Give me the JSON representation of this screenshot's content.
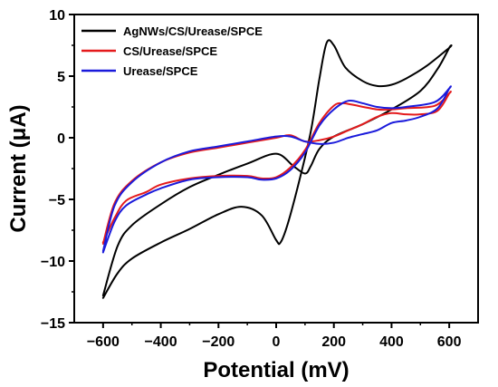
{
  "chart_data": {
    "type": "line",
    "title": "",
    "xlabel": "Potential (mV)",
    "ylabel": "Current (μA)",
    "xlim": [
      -700,
      700
    ],
    "ylim": [
      -15,
      10
    ],
    "x_ticks": [
      -600,
      -400,
      -200,
      0,
      200,
      400,
      600
    ],
    "x_tick_labels": [
      "−600",
      "−400",
      "−200",
      "0",
      "200",
      "400",
      "600"
    ],
    "y_ticks": [
      -15,
      -10,
      -5,
      0,
      5,
      10
    ],
    "y_tick_labels": [
      "−15",
      "−10",
      "−5",
      "0",
      "5",
      "10"
    ],
    "grid": false,
    "legend_position": "top-left",
    "series": [
      {
        "name": "AgNWs/CS/Urease/SPCE",
        "color": "#000000",
        "points": [
          [
            -600,
            -13
          ],
          [
            -550,
            -11
          ],
          [
            -500,
            -9.8
          ],
          [
            -400,
            -8.5
          ],
          [
            -300,
            -7.4
          ],
          [
            -200,
            -6.2
          ],
          [
            -120,
            -5.6
          ],
          [
            -50,
            -6.3
          ],
          [
            0,
            -8.3
          ],
          [
            15,
            -8.5
          ],
          [
            40,
            -7
          ],
          [
            80,
            -3.5
          ],
          [
            120,
            0.5
          ],
          [
            150,
            4.8
          ],
          [
            175,
            7.7
          ],
          [
            200,
            7.5
          ],
          [
            240,
            5.7
          ],
          [
            300,
            4.6
          ],
          [
            350,
            4.2
          ],
          [
            400,
            4.3
          ],
          [
            450,
            4.8
          ],
          [
            520,
            5.8
          ],
          [
            600,
            7.3
          ],
          [
            600,
            7.3
          ],
          [
            560,
            5.6
          ],
          [
            500,
            3.8
          ],
          [
            400,
            2.3
          ],
          [
            300,
            1.1
          ],
          [
            200,
            0.1
          ],
          [
            150,
            -0.9
          ],
          [
            120,
            -2.3
          ],
          [
            100,
            -2.9
          ],
          [
            60,
            -2.3
          ],
          [
            0,
            -1.3
          ],
          [
            -100,
            -2.1
          ],
          [
            -200,
            -3
          ],
          [
            -300,
            -4
          ],
          [
            -400,
            -5.4
          ],
          [
            -500,
            -7.1
          ],
          [
            -550,
            -8.8
          ],
          [
            -600,
            -12.8
          ]
        ]
      },
      {
        "name": "CS/Urease/SPCE",
        "color": "#e41a1c",
        "points": [
          [
            -600,
            -8.5
          ],
          [
            -560,
            -6.5
          ],
          [
            -520,
            -5.1
          ],
          [
            -450,
            -4.4
          ],
          [
            -400,
            -3.8
          ],
          [
            -300,
            -3.3
          ],
          [
            -200,
            -3.1
          ],
          [
            -100,
            -3.1
          ],
          [
            -50,
            -3.3
          ],
          [
            0,
            -3.2
          ],
          [
            50,
            -2.4
          ],
          [
            100,
            -1
          ],
          [
            150,
            1.2
          ],
          [
            200,
            2.6
          ],
          [
            230,
            2.8
          ],
          [
            260,
            2.7
          ],
          [
            350,
            2.3
          ],
          [
            400,
            2.3
          ],
          [
            450,
            2.4
          ],
          [
            550,
            2.6
          ],
          [
            600,
            3.6
          ],
          [
            600,
            3.6
          ],
          [
            560,
            2.2
          ],
          [
            500,
            1.9
          ],
          [
            450,
            1.9
          ],
          [
            400,
            2
          ],
          [
            350,
            1.7
          ],
          [
            300,
            1.1
          ],
          [
            250,
            0.6
          ],
          [
            200,
            0.1
          ],
          [
            150,
            -0.2
          ],
          [
            100,
            -0.3
          ],
          [
            50,
            0.2
          ],
          [
            0,
            0
          ],
          [
            -100,
            -0.4
          ],
          [
            -200,
            -0.8
          ],
          [
            -300,
            -1.2
          ],
          [
            -400,
            -2
          ],
          [
            -500,
            -3.5
          ],
          [
            -560,
            -5.3
          ],
          [
            -600,
            -8.6
          ]
        ]
      },
      {
        "name": "Urease/SPCE",
        "color": "#1a1adb",
        "points": [
          [
            -600,
            -9.3
          ],
          [
            -560,
            -6.8
          ],
          [
            -520,
            -5.5
          ],
          [
            -450,
            -4.6
          ],
          [
            -400,
            -4.1
          ],
          [
            -300,
            -3.4
          ],
          [
            -200,
            -3.2
          ],
          [
            -100,
            -3.2
          ],
          [
            -50,
            -3.4
          ],
          [
            0,
            -3.3
          ],
          [
            50,
            -2.6
          ],
          [
            100,
            -1.2
          ],
          [
            150,
            1
          ],
          [
            200,
            2.3
          ],
          [
            250,
            3
          ],
          [
            300,
            2.8
          ],
          [
            350,
            2.5
          ],
          [
            400,
            2.4
          ],
          [
            450,
            2.5
          ],
          [
            550,
            2.9
          ],
          [
            600,
            4
          ],
          [
            600,
            4
          ],
          [
            560,
            2.4
          ],
          [
            500,
            1.7
          ],
          [
            450,
            1.4
          ],
          [
            400,
            1.2
          ],
          [
            350,
            0.6
          ],
          [
            300,
            0.3
          ],
          [
            250,
            0
          ],
          [
            200,
            -0.4
          ],
          [
            150,
            -0.5
          ],
          [
            100,
            -0.3
          ],
          [
            50,
            0.1
          ],
          [
            0,
            0.1
          ],
          [
            -100,
            -0.3
          ],
          [
            -200,
            -0.7
          ],
          [
            -300,
            -1.1
          ],
          [
            -400,
            -2
          ],
          [
            -500,
            -3.6
          ],
          [
            -560,
            -5.5
          ],
          [
            -600,
            -9.2
          ]
        ]
      }
    ]
  }
}
